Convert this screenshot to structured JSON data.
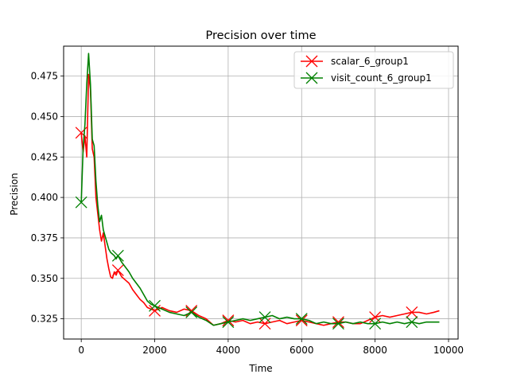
{
  "chart_data": {
    "type": "line",
    "title": "Precision over time",
    "xlabel": "Time",
    "ylabel": "Precision",
    "xlim": [
      -480,
      10260
    ],
    "ylim": [
      0.3125,
      0.4935
    ],
    "xticks": [
      0,
      2000,
      4000,
      6000,
      8000,
      10000
    ],
    "xtick_labels": [
      "0",
      "2000",
      "4000",
      "6000",
      "8000",
      "10000"
    ],
    "yticks": [
      0.325,
      0.35,
      0.375,
      0.4,
      0.425,
      0.45,
      0.475
    ],
    "ytick_labels": [
      "0.325",
      "0.350",
      "0.375",
      "0.400",
      "0.425",
      "0.450",
      "0.475"
    ],
    "grid": true,
    "legend_position": "top-right",
    "series": [
      {
        "name": "scalar_6_group1",
        "color": "#ff0000",
        "marker": "x",
        "markers_x": [
          0,
          1000,
          2000,
          3000,
          4000,
          5000,
          6000,
          7000,
          8000,
          9000
        ],
        "x": [
          0,
          50,
          100,
          150,
          200,
          250,
          300,
          350,
          400,
          450,
          500,
          550,
          600,
          650,
          700,
          750,
          800,
          850,
          900,
          950,
          1000,
          1100,
          1200,
          1300,
          1400,
          1500,
          1600,
          1700,
          1800,
          1900,
          2000,
          2200,
          2400,
          2600,
          2800,
          3000,
          3200,
          3400,
          3600,
          3800,
          4000,
          4200,
          4400,
          4600,
          4800,
          5000,
          5200,
          5400,
          5600,
          5800,
          6000,
          6200,
          6400,
          6600,
          6800,
          7000,
          7200,
          7400,
          7600,
          7800,
          8000,
          8200,
          8400,
          8600,
          8800,
          9000,
          9200,
          9400,
          9600,
          9750
        ],
        "y": [
          0.44,
          0.428,
          0.438,
          0.425,
          0.476,
          0.467,
          0.43,
          0.425,
          0.4,
          0.39,
          0.38,
          0.373,
          0.378,
          0.37,
          0.362,
          0.356,
          0.351,
          0.35,
          0.354,
          0.352,
          0.355,
          0.351,
          0.349,
          0.347,
          0.343,
          0.34,
          0.337,
          0.335,
          0.332,
          0.331,
          0.33,
          0.332,
          0.33,
          0.329,
          0.331,
          0.33,
          0.327,
          0.325,
          0.321,
          0.322,
          0.324,
          0.323,
          0.324,
          0.322,
          0.323,
          0.322,
          0.323,
          0.324,
          0.322,
          0.323,
          0.324,
          0.323,
          0.322,
          0.321,
          0.322,
          0.323,
          0.323,
          0.322,
          0.322,
          0.324,
          0.326,
          0.327,
          0.326,
          0.327,
          0.328,
          0.329,
          0.329,
          0.328,
          0.329,
          0.33
        ]
      },
      {
        "name": "visit_count_6_group1",
        "color": "#008000",
        "marker": "x",
        "markers_x": [
          0,
          1000,
          2000,
          3000,
          4000,
          5000,
          6000,
          7000,
          8000,
          9000
        ],
        "x": [
          0,
          50,
          100,
          150,
          200,
          250,
          300,
          350,
          400,
          450,
          500,
          550,
          600,
          650,
          700,
          750,
          800,
          850,
          900,
          950,
          1000,
          1100,
          1200,
          1300,
          1400,
          1500,
          1600,
          1700,
          1800,
          1900,
          2000,
          2200,
          2400,
          2600,
          2800,
          3000,
          3200,
          3400,
          3600,
          3800,
          4000,
          4200,
          4400,
          4600,
          4800,
          5000,
          5200,
          5400,
          5600,
          5800,
          6000,
          6200,
          6400,
          6600,
          6800,
          7000,
          7200,
          7400,
          7600,
          7800,
          8000,
          8200,
          8400,
          8600,
          8800,
          9000,
          9200,
          9400,
          9600,
          9750
        ],
        "y": [
          0.397,
          0.43,
          0.445,
          0.47,
          0.489,
          0.47,
          0.436,
          0.432,
          0.41,
          0.395,
          0.385,
          0.389,
          0.38,
          0.376,
          0.372,
          0.368,
          0.366,
          0.365,
          0.364,
          0.362,
          0.364,
          0.36,
          0.357,
          0.354,
          0.35,
          0.347,
          0.344,
          0.34,
          0.336,
          0.334,
          0.333,
          0.331,
          0.329,
          0.328,
          0.327,
          0.329,
          0.326,
          0.324,
          0.321,
          0.322,
          0.323,
          0.324,
          0.325,
          0.324,
          0.325,
          0.326,
          0.327,
          0.325,
          0.326,
          0.325,
          0.325,
          0.324,
          0.322,
          0.323,
          0.322,
          0.322,
          0.323,
          0.322,
          0.323,
          0.322,
          0.322,
          0.323,
          0.322,
          0.323,
          0.322,
          0.323,
          0.322,
          0.323,
          0.323,
          0.323
        ]
      }
    ]
  }
}
